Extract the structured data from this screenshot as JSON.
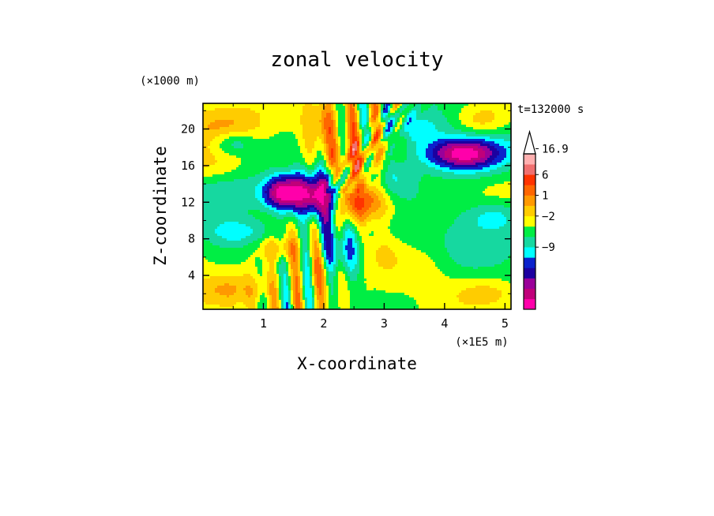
{
  "chart_data": {
    "type": "heatmap",
    "title": "zonal velocity",
    "xlabel": "X-coordinate",
    "ylabel": "Z-coordinate",
    "x_unit": "(×1E5 m)",
    "y_unit": "(×1000 m)",
    "time_label": "t=132000 s",
    "x_ticks": [
      1,
      2,
      3,
      4,
      5
    ],
    "y_ticks": [
      4,
      8,
      12,
      16,
      20
    ],
    "xlim": [
      0,
      5.1
    ],
    "ylim": [
      0.3,
      22.8
    ],
    "colorbar": {
      "labels": [
        {
          "value": "16.9",
          "level": 8
        },
        {
          "value": "6",
          "level": 5.5
        },
        {
          "value": "1",
          "level": 3.5
        },
        {
          "value": "−2",
          "level": 1.5
        },
        {
          "value": "−9",
          "level": -1.5
        }
      ],
      "colors": [
        "#ff00aa",
        "#c0007a",
        "#9a0099",
        "#1c00a0",
        "#0b22cc",
        "#00ffff",
        "#16d8a0",
        "#00ee44",
        "#ffff00",
        "#ffcc00",
        "#ff9900",
        "#ff6600",
        "#ff3300",
        "#f07070",
        "#ffb0b0"
      ],
      "extend_top_color": "#ffffff"
    },
    "features": [
      {
        "x": 0.35,
        "z": 20.5,
        "v": 2.2,
        "sx": 0.55,
        "sz": 1.8
      },
      {
        "x": 0.2,
        "z": 15.5,
        "v": 1.8,
        "sx": 0.45,
        "sz": 1.5
      },
      {
        "x": 0.5,
        "z": 18.5,
        "v": -2.4,
        "sx": 0.25,
        "sz": 0.9
      },
      {
        "x": 1.3,
        "z": 13,
        "v": -5.8,
        "sx": 0.22,
        "sz": 1.3
      },
      {
        "x": 1.75,
        "z": 12.8,
        "v": -6.2,
        "sx": 0.3,
        "sz": 1.7
      },
      {
        "x": 2.05,
        "z": 11.8,
        "v": -4.5,
        "sx": 0.15,
        "sz": 2.2
      },
      {
        "x": 0.5,
        "z": 13.5,
        "v": -2.5,
        "sx": 0.6,
        "sz": 2.2
      },
      {
        "x": 0.5,
        "z": 8.8,
        "v": -2.1,
        "sx": 0.45,
        "sz": 1.2
      },
      {
        "x": 1.25,
        "z": 10.5,
        "v": 0.9,
        "sx": 0.45,
        "sz": 1.3
      },
      {
        "x": 2.6,
        "z": 12.2,
        "v": 4.4,
        "sx": 0.4,
        "sz": 1.6
      },
      {
        "x": 2.4,
        "z": 16.5,
        "v": 3.0,
        "sx": 0.3,
        "sz": 1.5
      },
      {
        "x": 1.95,
        "z": 20.5,
        "v": 2.6,
        "sx": 0.25,
        "sz": 1.8
      },
      {
        "x": 2.9,
        "z": 18,
        "v": 1.3,
        "sx": 0.35,
        "sz": 2.0
      },
      {
        "x": 3.4,
        "z": 20.5,
        "v": -2.2,
        "sx": 0.4,
        "sz": 1.4
      },
      {
        "x": 3.15,
        "z": 14,
        "v": -2.6,
        "sx": 0.28,
        "sz": 1.8
      },
      {
        "x": 4.3,
        "z": 17.3,
        "v": -5.8,
        "sx": 0.4,
        "sz": 1.1
      },
      {
        "x": 4.3,
        "z": 17.3,
        "v": -2.5,
        "sx": 0.7,
        "sz": 2.0
      },
      {
        "x": 4.8,
        "z": 10.5,
        "v": -2.2,
        "sx": 0.35,
        "sz": 1.2
      },
      {
        "x": 4.6,
        "z": 21,
        "v": 1.8,
        "sx": 0.3,
        "sz": 1.2
      },
      {
        "x": 2.3,
        "z": 6.5,
        "v": -4.2,
        "sx": 0.3,
        "sz": 2.0
      },
      {
        "x": 2.0,
        "z": 4.5,
        "v": 2.8,
        "sx": 0.25,
        "sz": 1.8
      },
      {
        "x": 2.8,
        "z": 6.5,
        "v": 2.0,
        "sx": 0.3,
        "sz": 1.5
      },
      {
        "x": 1.25,
        "z": 7,
        "v": 2.1,
        "sx": 0.3,
        "sz": 0.9
      },
      {
        "x": 0.4,
        "z": 2.5,
        "v": 1.6,
        "sx": 0.55,
        "sz": 1.2
      },
      {
        "x": 3.7,
        "z": 5,
        "v": 1.0,
        "sx": 0.4,
        "sz": 2.0
      },
      {
        "x": 4.7,
        "z": 2,
        "v": 1.3,
        "sx": 0.35,
        "sz": 1.0
      },
      {
        "x": 4.2,
        "z": 6.8,
        "v": -1.4,
        "sx": 0.9,
        "sz": 2.5
      }
    ]
  }
}
